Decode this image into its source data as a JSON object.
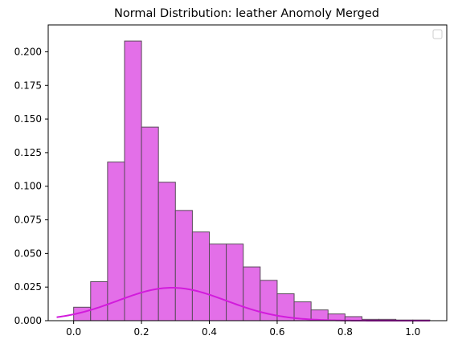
{
  "chart_data": {
    "type": "bar",
    "title": "Normal Distribution: leather Anomoly Merged",
    "xlabel": "",
    "ylabel": "",
    "xlim": [
      -0.075,
      1.1
    ],
    "ylim": [
      0,
      0.22
    ],
    "xticks": [
      0.0,
      0.2,
      0.4,
      0.6,
      0.8,
      1.0
    ],
    "xtick_labels": [
      "0.0",
      "0.2",
      "0.4",
      "0.6",
      "0.8",
      "1.0"
    ],
    "yticks": [
      0.0,
      0.025,
      0.05,
      0.075,
      0.1,
      0.125,
      0.15,
      0.175,
      0.2
    ],
    "ytick_labels": [
      "0.000",
      "0.025",
      "0.050",
      "0.075",
      "0.100",
      "0.125",
      "0.150",
      "0.175",
      "0.200"
    ],
    "grid": false,
    "legend": "top-right (empty)",
    "histogram": {
      "bin_edges": [
        0.0,
        0.05,
        0.1,
        0.15,
        0.2,
        0.25,
        0.3,
        0.35,
        0.4,
        0.45,
        0.5,
        0.55,
        0.6,
        0.65,
        0.7,
        0.75,
        0.8,
        0.85,
        0.9,
        0.95,
        1.0,
        1.05
      ],
      "values": [
        0.01,
        0.029,
        0.118,
        0.208,
        0.144,
        0.103,
        0.082,
        0.066,
        0.057,
        0.057,
        0.04,
        0.03,
        0.02,
        0.014,
        0.008,
        0.005,
        0.003,
        0.001,
        0.001,
        0.0005,
        0.0005
      ],
      "fill_color": "#e36fe8",
      "edge_color": "#5a4a5a"
    },
    "curve": {
      "type": "normal_pdf",
      "mean": 0.29,
      "std": 0.16,
      "peak": 0.0245,
      "x_range": [
        -0.05,
        1.05
      ],
      "color": "#d21bdc"
    }
  }
}
